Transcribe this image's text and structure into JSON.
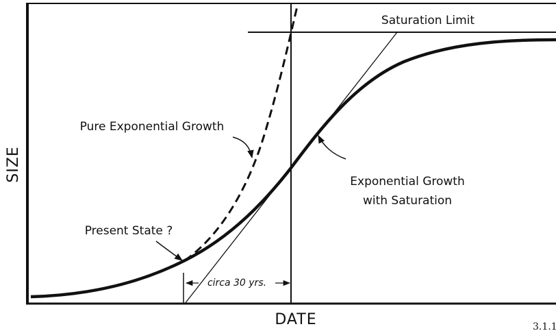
{
  "axes": {
    "y_label": "SIZE",
    "x_label": "DATE"
  },
  "labels": {
    "saturation_limit": "Saturation Limit",
    "pure_exponential": "Pure Exponential Growth",
    "exponential_saturation": [
      "Exponential Growth",
      "with Saturation"
    ],
    "present_state": "Present State ?",
    "interval": "circa 30 yrs."
  },
  "figure_number": "3.1.1"
}
